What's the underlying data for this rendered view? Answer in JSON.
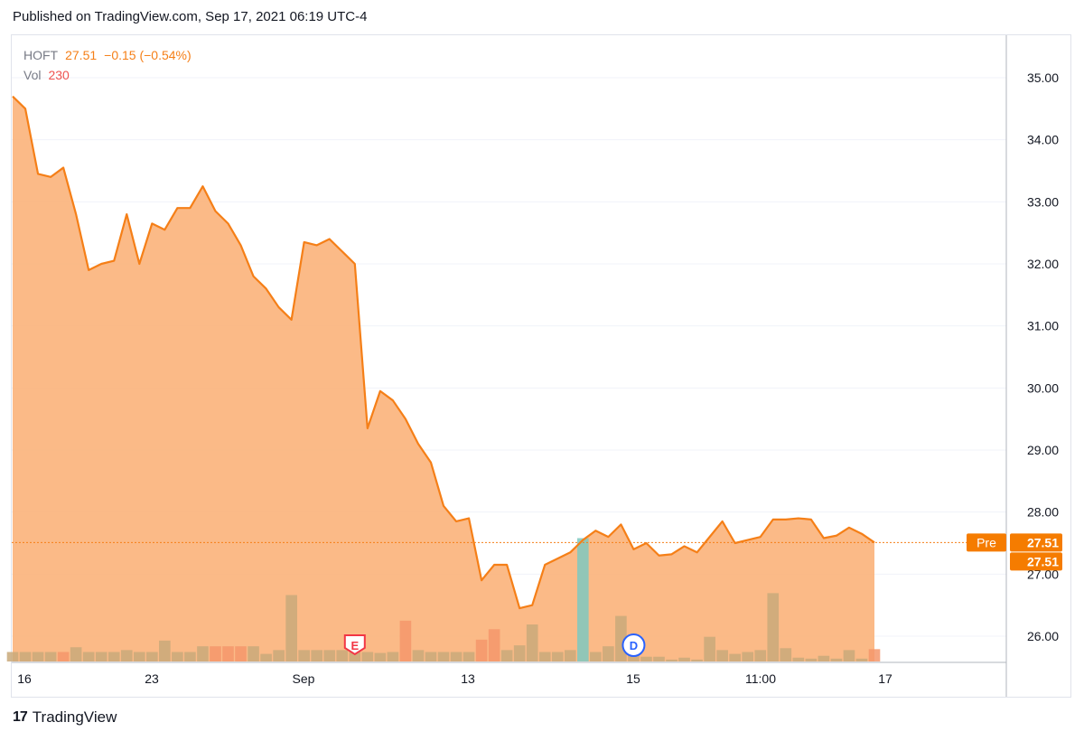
{
  "header": {
    "published": "Published on TradingView.com, Sep 17, 2021 06:19 UTC-4"
  },
  "legend": {
    "symbol": "HOFT",
    "price": "27.51",
    "change": "−0.15 (−0.54%)",
    "vol_label": "Vol",
    "vol_value": "230"
  },
  "footer": {
    "brand": "TradingView",
    "logo_text": "17"
  },
  "colors": {
    "line": "#f57f17",
    "area": "#fbb27a",
    "vol": "#c9a97a",
    "vol_down": "#f4976b",
    "vol_up": "#7ec8c0",
    "pre": "#f57c00",
    "axis_text": "#131722"
  },
  "chart_data": {
    "type": "area",
    "symbol": "HOFT",
    "ylim": [
      25.6,
      35.3
    ],
    "y_ticks": [
      "35.00",
      "34.00",
      "33.00",
      "32.00",
      "31.00",
      "30.00",
      "29.00",
      "28.00",
      "27.00",
      "26.00"
    ],
    "x_ticks": [
      "16",
      "23",
      "Sep",
      "13",
      "15",
      "11:00",
      "17"
    ],
    "price": [
      34.7,
      34.5,
      33.45,
      33.4,
      33.55,
      32.8,
      31.9,
      32.0,
      32.05,
      32.8,
      32.0,
      32.65,
      32.55,
      32.9,
      32.9,
      33.25,
      32.85,
      32.65,
      32.3,
      31.8,
      31.6,
      31.3,
      31.1,
      32.35,
      32.3,
      32.4,
      32.2,
      32.0,
      29.35,
      29.95,
      29.8,
      29.5,
      29.1,
      28.8,
      28.1,
      27.85,
      27.9,
      26.9,
      27.15,
      27.15,
      26.45,
      26.5,
      27.15,
      27.25,
      27.35,
      27.55,
      27.7,
      27.6,
      27.8,
      27.4,
      27.5,
      27.3,
      27.32,
      27.45,
      27.35,
      27.6,
      27.85,
      27.5,
      27.55,
      27.6,
      27.88,
      27.88,
      27.9,
      27.88,
      27.58,
      27.62,
      27.75,
      27.65,
      27.51
    ],
    "volume": [
      1,
      1,
      1,
      1,
      1,
      1.5,
      1,
      1,
      1,
      1.2,
      1,
      1,
      2.2,
      1,
      1,
      1.6,
      1.6,
      1.6,
      1.6,
      1.6,
      0.8,
      1.2,
      7,
      1.2,
      1.2,
      1.2,
      1.2,
      1,
      1,
      0.9,
      1,
      4.3,
      1.2,
      1,
      1,
      1,
      1,
      2.3,
      3.4,
      1.2,
      1.7,
      3.9,
      1,
      1,
      1.2,
      13,
      1,
      1.6,
      4.8,
      1,
      0.5,
      0.5,
      0.2,
      0.4,
      0.2,
      2.6,
      1.2,
      0.8,
      1,
      1.2,
      7.2,
      1.4,
      0.4,
      0.3,
      0.6,
      0.3,
      1.2,
      0.3,
      1.3
    ],
    "volume_colors": [
      "vol",
      "vol",
      "vol",
      "vol",
      "vol_down",
      "vol",
      "vol",
      "vol",
      "vol",
      "vol",
      "vol",
      "vol",
      "vol",
      "vol",
      "vol",
      "vol",
      "vol_down",
      "vol_down",
      "vol_down",
      "vol",
      "vol",
      "vol",
      "vol",
      "vol",
      "vol",
      "vol",
      "vol",
      "vol",
      "vol",
      "vol",
      "vol",
      "vol_down",
      "vol",
      "vol",
      "vol",
      "vol",
      "vol",
      "vol_down",
      "vol_down",
      "vol",
      "vol",
      "vol",
      "vol",
      "vol",
      "vol",
      "vol_up",
      "vol",
      "vol",
      "vol",
      "vol",
      "vol",
      "vol",
      "vol",
      "vol",
      "vol",
      "vol",
      "vol",
      "vol",
      "vol",
      "vol",
      "vol",
      "vol",
      "vol",
      "vol",
      "vol",
      "vol",
      "vol",
      "vol",
      "vol_down"
    ],
    "markers": [
      {
        "label": "E",
        "at_index": 27
      },
      {
        "label": "D",
        "at_index": 49
      }
    ],
    "last_price_label": "27.51",
    "pre_label": "Pre",
    "pre_value": "27.51"
  }
}
